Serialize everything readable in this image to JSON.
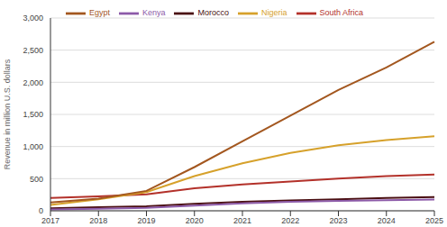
{
  "chart_data": {
    "type": "line",
    "y_label": "Revenue in million U.S. dollars",
    "categories": [
      "2017",
      "2018",
      "2019",
      "2020",
      "2021",
      "2022",
      "2023",
      "2024",
      "2025"
    ],
    "series": [
      {
        "name": "South Africa",
        "color": "#b3312a",
        "values": [
          200,
          225,
          255,
          350,
          410,
          455,
          500,
          540,
          565
        ]
      },
      {
        "name": "Morocco",
        "color": "#4a0f12",
        "values": [
          40,
          55,
          70,
          110,
          140,
          160,
          180,
          200,
          215
        ]
      },
      {
        "name": "Nigeria",
        "color": "#d6a12b",
        "values": [
          90,
          180,
          290,
          540,
          740,
          900,
          1020,
          1100,
          1160
        ]
      },
      {
        "name": "Kenya",
        "color": "#8c5aa8",
        "values": [
          20,
          30,
          45,
          80,
          115,
          140,
          155,
          165,
          175
        ]
      },
      {
        "name": "Egypt",
        "color": "#a3571f",
        "values": [
          130,
          190,
          310,
          680,
          1080,
          1480,
          1880,
          2230,
          2630
        ]
      }
    ],
    "ylim": [
      0,
      3000
    ],
    "yticks": [
      0,
      500,
      {
        "value": 1000,
        "label": "1,000"
      },
      {
        "value": 1500,
        "label": "1,500"
      },
      {
        "value": 2000,
        "label": "2,000"
      },
      {
        "value": 2500,
        "label": "2,500"
      },
      {
        "value": 3000,
        "label": "3,000"
      }
    ],
    "grid": true,
    "legend": "top"
  }
}
